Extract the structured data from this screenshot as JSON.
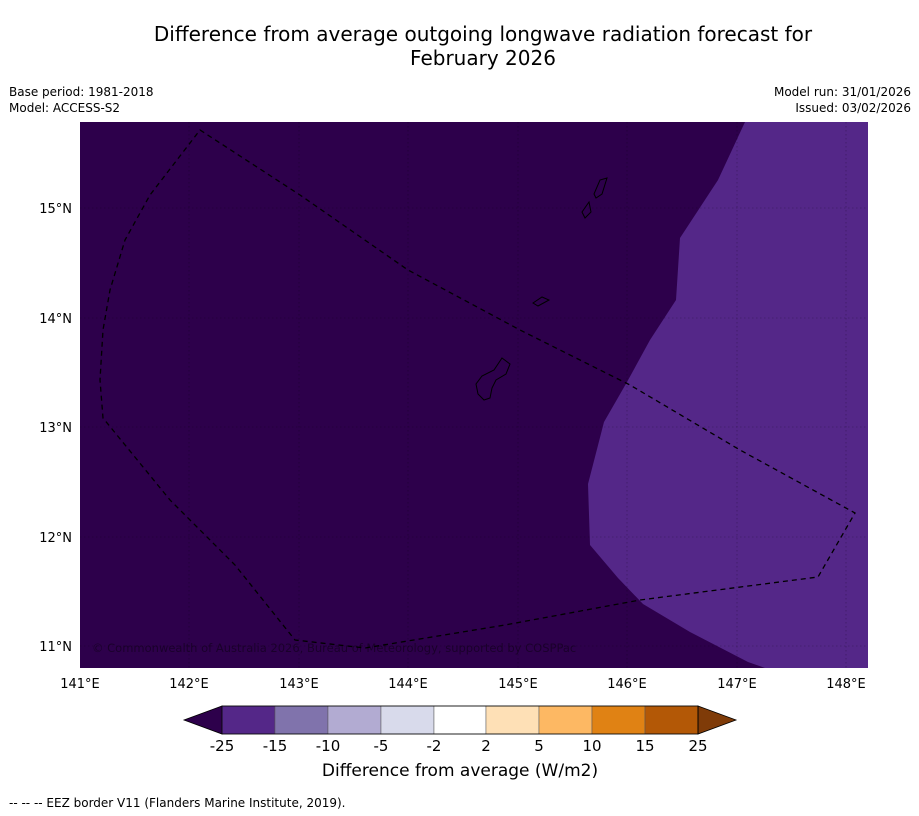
{
  "header": {
    "title_line1": "Difference from average outgoing longwave radiation forecast for",
    "title_line2": "February 2026",
    "base_period": "Base period: 1981-2018",
    "model": "Model: ACCESS-S2",
    "model_run": "Model run: 31/01/2026",
    "issued": "Issued: 03/02/2026"
  },
  "map": {
    "lon_labels": [
      "141°E",
      "142°E",
      "143°E",
      "144°E",
      "145°E",
      "146°E",
      "147°E",
      "148°E"
    ],
    "lat_labels": [
      "15°N",
      "14°N",
      "13°N",
      "12°N",
      "11°N"
    ],
    "credit": "© Commonwealth of Australia 2026, Bureau of Meteorology, supported by COSPPac",
    "colors": {
      "background": "#2d004b",
      "anomaly_region": "#542788",
      "eez_line": "#000000"
    }
  },
  "colorbar": {
    "labels": [
      "-25",
      "-15",
      "-10",
      "-5",
      "-2",
      "2",
      "5",
      "10",
      "15",
      "25"
    ],
    "colors": [
      "#2d004b",
      "#542788",
      "#8073ac",
      "#b2abd2",
      "#d8daeb",
      "#ffffff",
      "#fee0b6",
      "#fdb863",
      "#e08214",
      "#b35806",
      "#7f3b08"
    ],
    "title": "Difference from average (W/m2)"
  },
  "footnote": "--  --  -- EEZ border V11 (Flanders Marine Institute, 2019)."
}
